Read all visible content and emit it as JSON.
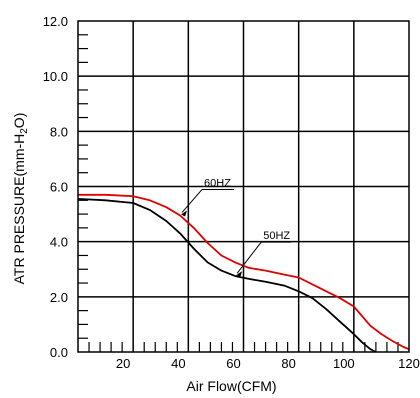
{
  "chart_data": {
    "type": "line",
    "title": "",
    "xlabel": "Air Flow(CFM)",
    "ylabel_main": "ATR PRESSURE(mm-H",
    "ylabel_sub": "2",
    "ylabel_end": "O)",
    "xlim": [
      0,
      120
    ],
    "ylim": [
      0,
      12
    ],
    "grid": true,
    "xticks": [
      {
        "value": 20,
        "label": "20"
      },
      {
        "value": 40,
        "label": "40"
      },
      {
        "value": 60,
        "label": "60"
      },
      {
        "value": 80,
        "label": "80"
      },
      {
        "value": 100,
        "label": "100"
      },
      {
        "value": 120,
        "label": "120"
      }
    ],
    "yticks": [
      {
        "value": 0,
        "label": "0.0"
      },
      {
        "value": 2,
        "label": "2.0"
      },
      {
        "value": 4,
        "label": "4.0"
      },
      {
        "value": 6,
        "label": "6.0"
      },
      {
        "value": 8,
        "label": "8.0"
      },
      {
        "value": 10,
        "label": "10.0"
      },
      {
        "value": 12,
        "label": "12.0"
      }
    ],
    "series": [
      {
        "name": "60HZ",
        "color": "#e00000",
        "x": [
          0,
          10,
          20,
          26,
          32,
          37,
          42,
          47,
          52,
          57,
          62,
          68,
          75,
          80,
          85,
          90,
          95,
          100,
          103,
          106,
          110,
          114,
          118,
          120
        ],
        "y": [
          5.7,
          5.7,
          5.65,
          5.5,
          5.25,
          4.95,
          4.5,
          3.95,
          3.5,
          3.25,
          3.05,
          2.95,
          2.8,
          2.7,
          2.45,
          2.2,
          1.95,
          1.65,
          1.3,
          0.95,
          0.65,
          0.4,
          0.18,
          0.1
        ]
      },
      {
        "name": "50HZ",
        "color": "#000000",
        "x": [
          0,
          10,
          20,
          26,
          32,
          37,
          42,
          47,
          52,
          57,
          62,
          68,
          75,
          80,
          85,
          90,
          95,
          100,
          103,
          106,
          108
        ],
        "y": [
          5.55,
          5.5,
          5.4,
          5.15,
          4.75,
          4.3,
          3.75,
          3.25,
          2.95,
          2.75,
          2.65,
          2.55,
          2.4,
          2.2,
          1.95,
          1.55,
          1.1,
          0.65,
          0.35,
          0.1,
          0.0
        ]
      }
    ],
    "annotations": [
      {
        "label": "60HZ",
        "series": "60HZ",
        "at_x": 37
      },
      {
        "label": "50HZ",
        "series": "50HZ",
        "at_x": 57
      }
    ]
  }
}
